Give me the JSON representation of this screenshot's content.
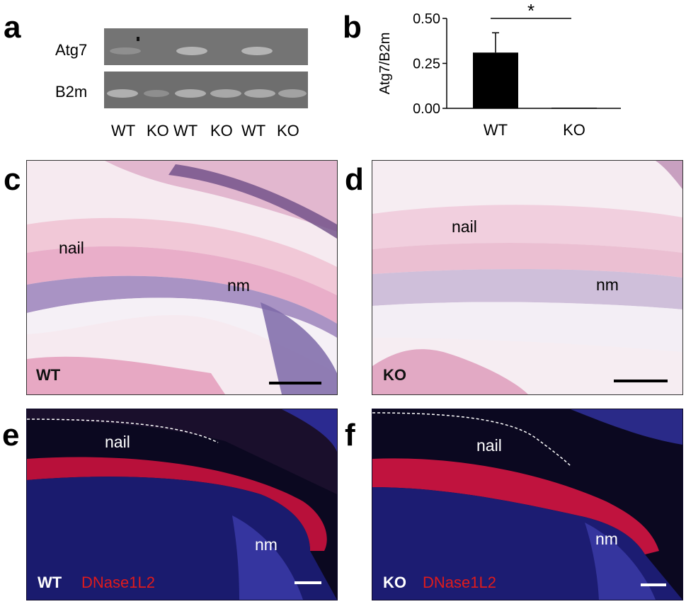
{
  "panels": {
    "a": {
      "letter": "a",
      "row_labels": [
        "Atg7",
        "B2m"
      ],
      "lane_labels": [
        "WT",
        "KO",
        "WT",
        "KO",
        "WT",
        "KO"
      ]
    },
    "b": {
      "letter": "b",
      "significance": "*"
    },
    "c": {
      "letter": "c",
      "nail_label": "nail",
      "nm_label": "nm",
      "genotype": "WT"
    },
    "d": {
      "letter": "d",
      "nail_label": "nail",
      "nm_label": "nm",
      "genotype": "KO"
    },
    "e": {
      "letter": "e",
      "nail_label": "nail",
      "nm_label": "nm",
      "genotype": "WT",
      "stain": "DNase1L2"
    },
    "f": {
      "letter": "f",
      "nail_label": "nail",
      "nm_label": "nm",
      "genotype": "KO",
      "stain": "DNase1L2"
    }
  },
  "chart_data": {
    "type": "bar",
    "ylabel": "Atg7/B2m",
    "categories": [
      "WT",
      "KO"
    ],
    "values": [
      0.31,
      0.0
    ],
    "errors": [
      0.11,
      0.0
    ],
    "ylim": [
      0,
      0.5
    ],
    "yticks": [
      "0.00",
      "0.25",
      "0.50"
    ],
    "bar_color": "#000000",
    "grid": false
  }
}
